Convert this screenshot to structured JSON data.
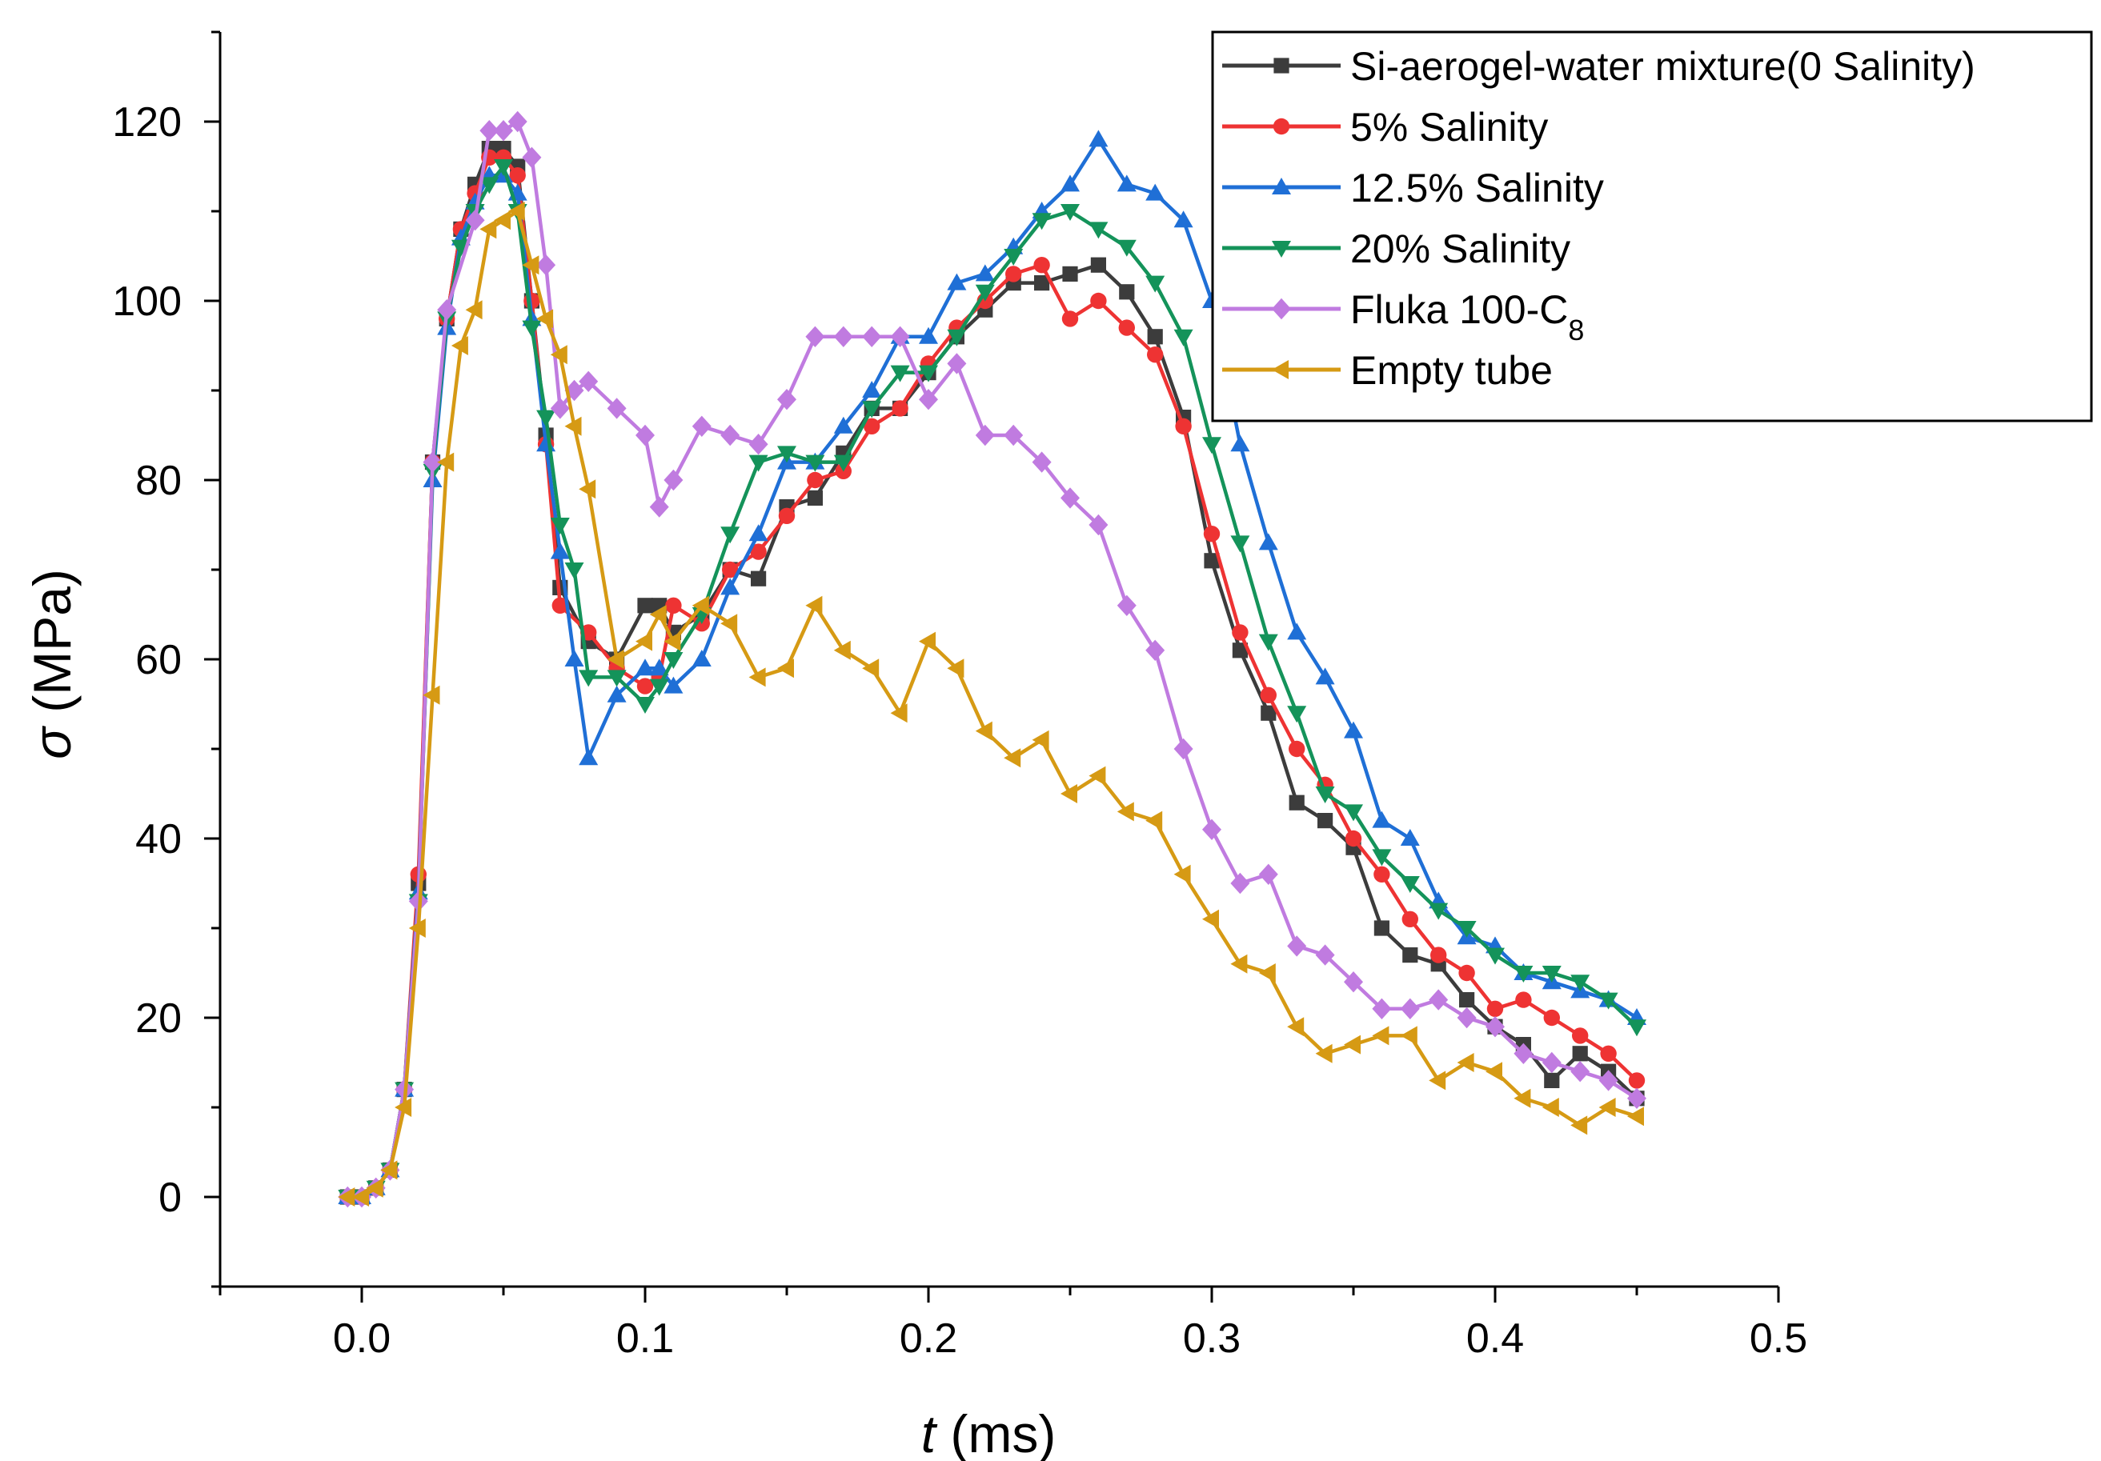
{
  "chart_data": {
    "type": "line",
    "xlabel_symbol": "t",
    "xlabel_unit": " (ms)",
    "ylabel_symbol": "σ",
    "ylabel_unit": " (MPa)",
    "xlim": [
      -0.05,
      0.5
    ],
    "ylim": [
      -10,
      130
    ],
    "xticks": [
      0.0,
      0.1,
      0.2,
      0.3,
      0.4,
      0.5
    ],
    "xtick_labels": [
      "0.0",
      "0.1",
      "0.2",
      "0.3",
      "0.4",
      "0.5"
    ],
    "yticks": [
      0,
      20,
      40,
      60,
      80,
      100,
      120
    ],
    "ytick_labels": [
      "0",
      "20",
      "40",
      "60",
      "80",
      "100",
      "120"
    ],
    "legend_position": "top-right",
    "series": [
      {
        "name": "Si-aerogel-water mixture(0 Salinity)",
        "color": "#3c3c3c",
        "marker": "square",
        "x": [
          -0.005,
          0.0,
          0.005,
          0.01,
          0.015,
          0.02,
          0.025,
          0.03,
          0.035,
          0.04,
          0.045,
          0.05,
          0.055,
          0.06,
          0.065,
          0.07,
          0.08,
          0.09,
          0.1,
          0.105,
          0.11,
          0.12,
          0.13,
          0.14,
          0.15,
          0.16,
          0.17,
          0.18,
          0.19,
          0.2,
          0.21,
          0.22,
          0.23,
          0.24,
          0.25,
          0.26,
          0.27,
          0.28,
          0.29,
          0.3,
          0.31,
          0.32,
          0.33,
          0.34,
          0.35,
          0.36,
          0.37,
          0.38,
          0.39,
          0.4,
          0.41,
          0.42,
          0.43,
          0.44,
          0.45
        ],
        "y": [
          0,
          0,
          1,
          3,
          12,
          35,
          82,
          98,
          108,
          113,
          117,
          117,
          115,
          100,
          85,
          68,
          62,
          60,
          66,
          66,
          63,
          65,
          70,
          69,
          77,
          78,
          83,
          88,
          88,
          92,
          96,
          99,
          102,
          102,
          103,
          104,
          101,
          96,
          87,
          71,
          61,
          54,
          44,
          42,
          39,
          30,
          27,
          26,
          22,
          19,
          17,
          13,
          16,
          14,
          11
        ]
      },
      {
        "name": "5% Salinity",
        "color": "#ee3333",
        "marker": "circle",
        "x": [
          -0.005,
          0.0,
          0.005,
          0.01,
          0.015,
          0.02,
          0.025,
          0.03,
          0.035,
          0.04,
          0.045,
          0.05,
          0.055,
          0.06,
          0.065,
          0.07,
          0.08,
          0.09,
          0.1,
          0.105,
          0.11,
          0.12,
          0.13,
          0.14,
          0.15,
          0.16,
          0.17,
          0.18,
          0.19,
          0.2,
          0.21,
          0.22,
          0.23,
          0.24,
          0.25,
          0.26,
          0.27,
          0.28,
          0.29,
          0.3,
          0.31,
          0.32,
          0.33,
          0.34,
          0.35,
          0.36,
          0.37,
          0.38,
          0.39,
          0.4,
          0.41,
          0.42,
          0.43,
          0.44,
          0.45
        ],
        "y": [
          0,
          0,
          1,
          3,
          12,
          36,
          82,
          98,
          108,
          112,
          116,
          116,
          114,
          100,
          84,
          66,
          63,
          59,
          57,
          58,
          66,
          64,
          70,
          72,
          76,
          80,
          81,
          86,
          88,
          93,
          97,
          100,
          103,
          104,
          98,
          100,
          97,
          94,
          86,
          74,
          63,
          56,
          50,
          46,
          40,
          36,
          31,
          27,
          25,
          21,
          22,
          20,
          18,
          16,
          13
        ]
      },
      {
        "name": "12.5% Salinity",
        "color": "#1f6fd6",
        "marker": "triangle-up",
        "x": [
          -0.005,
          0.0,
          0.005,
          0.01,
          0.015,
          0.02,
          0.025,
          0.03,
          0.035,
          0.04,
          0.045,
          0.05,
          0.055,
          0.06,
          0.065,
          0.07,
          0.075,
          0.08,
          0.09,
          0.1,
          0.105,
          0.11,
          0.12,
          0.13,
          0.14,
          0.15,
          0.16,
          0.17,
          0.18,
          0.19,
          0.2,
          0.21,
          0.22,
          0.23,
          0.24,
          0.25,
          0.26,
          0.27,
          0.28,
          0.29,
          0.3,
          0.31,
          0.32,
          0.33,
          0.34,
          0.35,
          0.36,
          0.37,
          0.38,
          0.39,
          0.4,
          0.41,
          0.42,
          0.43,
          0.44,
          0.45
        ],
        "y": [
          0,
          0,
          1,
          3,
          12,
          34,
          80,
          97,
          107,
          111,
          114,
          114,
          112,
          98,
          84,
          72,
          60,
          49,
          56,
          59,
          59,
          57,
          60,
          68,
          74,
          82,
          82,
          86,
          90,
          96,
          96,
          102,
          103,
          106,
          110,
          113,
          118,
          113,
          112,
          109,
          100,
          84,
          73,
          63,
          58,
          52,
          42,
          40,
          33,
          29,
          28,
          25,
          24,
          23,
          22,
          20
        ]
      },
      {
        "name": "20% Salinity",
        "color": "#14935a",
        "marker": "triangle-down",
        "x": [
          -0.005,
          0.0,
          0.005,
          0.01,
          0.015,
          0.02,
          0.025,
          0.03,
          0.035,
          0.04,
          0.045,
          0.05,
          0.055,
          0.06,
          0.065,
          0.07,
          0.075,
          0.08,
          0.09,
          0.1,
          0.105,
          0.11,
          0.12,
          0.13,
          0.14,
          0.15,
          0.16,
          0.17,
          0.18,
          0.19,
          0.2,
          0.21,
          0.22,
          0.23,
          0.24,
          0.25,
          0.26,
          0.27,
          0.28,
          0.29,
          0.3,
          0.31,
          0.32,
          0.33,
          0.34,
          0.35,
          0.36,
          0.37,
          0.38,
          0.39,
          0.4,
          0.41,
          0.42,
          0.43,
          0.44,
          0.45
        ],
        "y": [
          0,
          0,
          1,
          3,
          12,
          33,
          81,
          98,
          106,
          110,
          113,
          115,
          110,
          97,
          87,
          75,
          70,
          58,
          58,
          55,
          57,
          60,
          65,
          74,
          82,
          83,
          82,
          82,
          88,
          92,
          92,
          96,
          101,
          105,
          109,
          110,
          108,
          106,
          102,
          96,
          84,
          73,
          62,
          54,
          45,
          43,
          38,
          35,
          32,
          30,
          27,
          25,
          25,
          24,
          22,
          19
        ]
      },
      {
        "name": "Fluka 100-C",
        "name_sub": "8",
        "color": "#c07be0",
        "marker": "diamond",
        "x": [
          -0.005,
          0.0,
          0.005,
          0.01,
          0.015,
          0.02,
          0.025,
          0.03,
          0.04,
          0.045,
          0.05,
          0.055,
          0.06,
          0.065,
          0.07,
          0.075,
          0.08,
          0.09,
          0.1,
          0.105,
          0.11,
          0.12,
          0.13,
          0.14,
          0.15,
          0.16,
          0.17,
          0.18,
          0.19,
          0.2,
          0.21,
          0.22,
          0.23,
          0.24,
          0.25,
          0.26,
          0.27,
          0.28,
          0.29,
          0.3,
          0.31,
          0.32,
          0.33,
          0.34,
          0.35,
          0.36,
          0.37,
          0.38,
          0.39,
          0.4,
          0.41,
          0.42,
          0.43,
          0.44,
          0.45
        ],
        "y": [
          0,
          0,
          1,
          3,
          12,
          33,
          82,
          99,
          109,
          119,
          119,
          120,
          116,
          104,
          88,
          90,
          91,
          88,
          85,
          77,
          80,
          86,
          85,
          84,
          89,
          96,
          96,
          96,
          96,
          89,
          93,
          85,
          85,
          82,
          78,
          75,
          66,
          61,
          50,
          41,
          35,
          36,
          28,
          27,
          24,
          21,
          21,
          22,
          20,
          19,
          16,
          15,
          14,
          13,
          11
        ]
      },
      {
        "name": "Empty tube",
        "color": "#d69a14",
        "marker": "triangle-left",
        "x": [
          -0.005,
          0.0,
          0.005,
          0.01,
          0.015,
          0.02,
          0.025,
          0.03,
          0.035,
          0.04,
          0.045,
          0.05,
          0.055,
          0.06,
          0.065,
          0.07,
          0.075,
          0.08,
          0.09,
          0.1,
          0.105,
          0.11,
          0.12,
          0.13,
          0.14,
          0.15,
          0.16,
          0.17,
          0.18,
          0.19,
          0.2,
          0.21,
          0.22,
          0.23,
          0.24,
          0.25,
          0.26,
          0.27,
          0.28,
          0.29,
          0.3,
          0.31,
          0.32,
          0.33,
          0.34,
          0.35,
          0.36,
          0.37,
          0.38,
          0.39,
          0.4,
          0.41,
          0.42,
          0.43,
          0.44,
          0.45
        ],
        "y": [
          0,
          0,
          1,
          3,
          10,
          30,
          56,
          82,
          95,
          99,
          108,
          109,
          110,
          104,
          98,
          94,
          86,
          79,
          60,
          62,
          65,
          62,
          66,
          64,
          58,
          59,
          66,
          61,
          59,
          54,
          62,
          59,
          52,
          49,
          51,
          45,
          47,
          43,
          42,
          36,
          31,
          26,
          25,
          19,
          16,
          17,
          18,
          18,
          13,
          15,
          14,
          11,
          10,
          8,
          10,
          9
        ]
      }
    ]
  }
}
